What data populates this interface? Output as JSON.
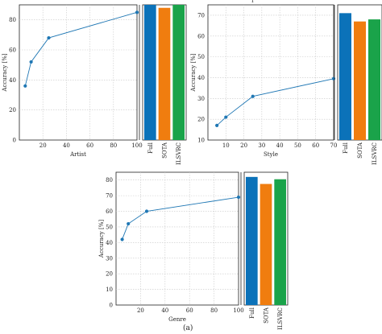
{
  "top_fragment": "r",
  "caption": "(a)",
  "colors": {
    "line": "#1f77b4",
    "bar_full": "#0b72b9",
    "bar_sota": "#f07d0f",
    "bar_ilsvrc": "#1aa34a",
    "grid": "#c8c8c8",
    "axis": "#222222"
  },
  "chart_data": [
    {
      "type": "line",
      "xlabel": "Artist",
      "ylabel": "Accuracy [%]",
      "xlim": [
        0,
        100
      ],
      "ylim": [
        0,
        90
      ],
      "xticks": [
        20,
        40,
        60,
        80,
        100
      ],
      "yticks": [
        0,
        20,
        40,
        60,
        80
      ],
      "grid": true,
      "series": [
        {
          "x": [
            5,
            10,
            25,
            100
          ],
          "y": [
            36,
            52,
            68,
            85
          ]
        }
      ],
      "bars": {
        "categories": [
          "Full",
          "SOTA",
          "ILSVRC"
        ],
        "values": [
          94,
          88,
          91
        ]
      }
    },
    {
      "type": "line",
      "xlabel": "Style",
      "ylabel": "Accuracy [%]",
      "xlim": [
        0,
        70
      ],
      "ylim": [
        10,
        75
      ],
      "xticks": [
        10,
        20,
        30,
        40,
        50,
        60,
        70
      ],
      "yticks": [
        10,
        20,
        30,
        40,
        50,
        60,
        70
      ],
      "grid": true,
      "series": [
        {
          "x": [
            5,
            10,
            25,
            70
          ],
          "y": [
            17,
            21,
            31,
            39.5
          ]
        }
      ],
      "bars": {
        "categories": [
          "Full",
          "SOTA",
          "ILSVRC"
        ],
        "values": [
          71,
          67,
          68
        ]
      }
    },
    {
      "type": "line",
      "xlabel": "Genre",
      "ylabel": "Accuracy [%]",
      "xlim": [
        0,
        100
      ],
      "ylim": [
        0,
        85
      ],
      "xticks": [
        20,
        40,
        60,
        80,
        100
      ],
      "yticks": [
        0,
        10,
        20,
        30,
        40,
        50,
        60,
        70,
        80
      ],
      "grid": true,
      "series": [
        {
          "x": [
            5,
            10,
            25,
            100
          ],
          "y": [
            42,
            52,
            60,
            69
          ]
        }
      ],
      "bars": {
        "categories": [
          "Full",
          "SOTA",
          "ILSVRC"
        ],
        "values": [
          82,
          77.5,
          80.5
        ]
      }
    }
  ]
}
